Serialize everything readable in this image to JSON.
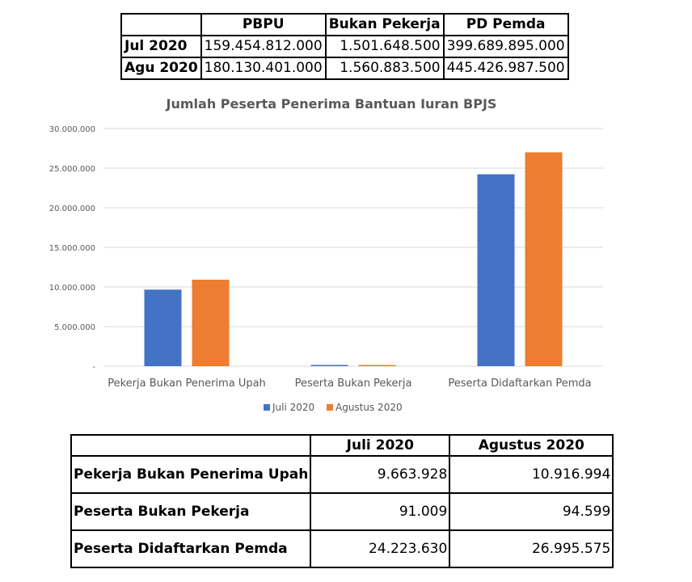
{
  "top_table": {
    "headers": [
      "",
      "PBPU",
      "Bukan Pekerja",
      "PD Pemda"
    ],
    "rows": [
      {
        "label": "Jul 2020",
        "values": [
          "159.454.812.000",
          "1.501.648.500",
          "399.689.895.000"
        ]
      },
      {
        "label": "Agu 2020",
        "values": [
          "180.130.401.000",
          "1.560.883.500",
          "445.426.987.500"
        ]
      }
    ]
  },
  "chart_data": {
    "type": "bar",
    "title": "Jumlah Peserta Penerima Bantuan Iuran BPJS",
    "categories": [
      "Pekerja Bukan Penerima Upah",
      "Peserta Bukan Pekerja",
      "Peserta Didaftarkan Pemda"
    ],
    "series": [
      {
        "name": "Juli 2020",
        "color": "#4472C4",
        "values": [
          9663928,
          91009,
          24223630
        ]
      },
      {
        "name": "Agustus 2020",
        "color": "#ED7D31",
        "values": [
          10916994,
          94599,
          26995575
        ]
      }
    ],
    "ylim": [
      0,
      30000000
    ],
    "yticks": [
      {
        "value": 0,
        "label": "-"
      },
      {
        "value": 5000000,
        "label": "5.000.000"
      },
      {
        "value": 10000000,
        "label": "10.000.000"
      },
      {
        "value": 15000000,
        "label": "15.000.000"
      },
      {
        "value": 20000000,
        "label": "20.000.000"
      },
      {
        "value": 25000000,
        "label": "25.000.000"
      },
      {
        "value": 30000000,
        "label": "30.000.000"
      }
    ],
    "grid": true,
    "legend": "bottom",
    "gridColor": "#D9D9D9"
  },
  "bottom_table": {
    "headers": [
      "",
      "Juli 2020",
      "Agustus 2020"
    ],
    "rows": [
      {
        "label": "Pekerja Bukan Penerima Upah",
        "values": [
          "9.663.928",
          "10.916.994"
        ]
      },
      {
        "label": "Peserta Bukan Pekerja",
        "values": [
          "91.009",
          "94.599"
        ]
      },
      {
        "label": "Peserta Didaftarkan Pemda",
        "values": [
          "24.223.630",
          "26.995.575"
        ]
      }
    ]
  }
}
